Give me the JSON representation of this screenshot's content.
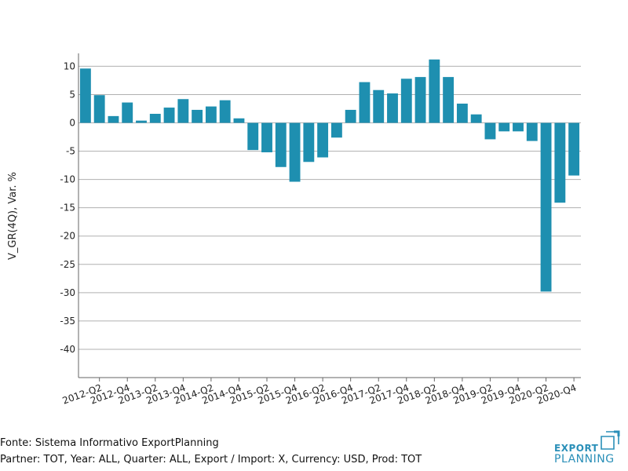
{
  "chart_data": {
    "type": "bar",
    "ylabel": "V_GR(4Q), Var. %",
    "xlabel": "",
    "title": "",
    "ylim": [
      -45,
      12
    ],
    "yticks": [
      10,
      5,
      0,
      -5,
      -10,
      -15,
      -20,
      -25,
      -30,
      -35,
      -40
    ],
    "grid": true,
    "bar_color": "#1e8fb0",
    "categories": [
      "2012-Q1",
      "2012-Q2",
      "2012-Q3",
      "2012-Q4",
      "2013-Q1",
      "2013-Q2",
      "2013-Q3",
      "2013-Q4",
      "2014-Q1",
      "2014-Q2",
      "2014-Q3",
      "2014-Q4",
      "2015-Q1",
      "2015-Q2",
      "2015-Q3",
      "2015-Q4",
      "2016-Q1",
      "2016-Q2",
      "2016-Q3",
      "2016-Q4",
      "2017-Q1",
      "2017-Q2",
      "2017-Q3",
      "2017-Q4",
      "2018-Q1",
      "2018-Q2",
      "2018-Q3",
      "2018-Q4",
      "2019-Q1",
      "2019-Q2",
      "2019-Q3",
      "2019-Q4",
      "2020-Q1",
      "2020-Q2",
      "2020-Q3",
      "2020-Q4"
    ],
    "x_tick_labels": [
      "2012-Q2",
      "2012-Q4",
      "2013-Q2",
      "2013-Q4",
      "2014-Q2",
      "2014-Q4",
      "2015-Q2",
      "2015-Q4",
      "2016-Q2",
      "2016-Q4",
      "2017-Q2",
      "2017-Q4",
      "2018-Q2",
      "2018-Q4",
      "2019-Q2",
      "2019-Q4",
      "2020-Q2",
      "2020-Q4"
    ],
    "values": [
      9.6,
      4.9,
      1.2,
      3.6,
      0.4,
      1.6,
      2.7,
      4.2,
      2.3,
      2.9,
      4.0,
      0.8,
      -4.8,
      -5.2,
      -7.8,
      -10.4,
      -6.9,
      -6.1,
      -2.6,
      2.3,
      7.2,
      5.8,
      5.2,
      7.8,
      8.1,
      11.2,
      8.1,
      3.4,
      1.5,
      -2.9,
      -1.5,
      -1.5,
      -3.2,
      -29.8,
      -14.1,
      -9.3
    ]
  },
  "footer": {
    "source": "Fonte: Sistema Informativo ExportPlanning",
    "filters": "Partner: TOT, Year: ALL, Quarter: ALL, Export / Import: X, Currency: USD, Prod: TOT"
  },
  "logo": {
    "line1": "EXPORT",
    "line2": "PLANNING",
    "color": "#2a8fb8"
  }
}
